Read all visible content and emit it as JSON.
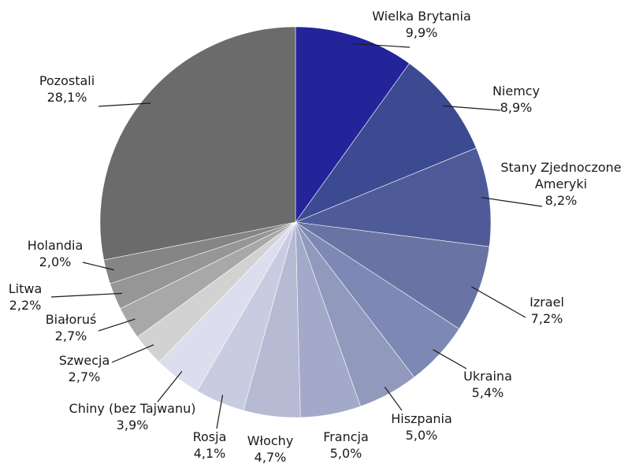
{
  "chart_data": {
    "type": "pie",
    "title": "",
    "slices": [
      {
        "label": [
          "Wielka Brytania"
        ],
        "value": 9.9,
        "display": "9,9%",
        "color": "#23239a"
      },
      {
        "label": [
          "Niemcy"
        ],
        "value": 8.9,
        "display": "8,9%",
        "color": "#3c4a92"
      },
      {
        "label": [
          "Stany Zjednoczone",
          "Ameryki"
        ],
        "value": 8.2,
        "display": "8,2%",
        "color": "#4f5b98"
      },
      {
        "label": [
          "Izrael"
        ],
        "value": 7.2,
        "display": "7,2%",
        "color": "#6a74a4"
      },
      {
        "label": [
          "Ukraina"
        ],
        "value": 5.4,
        "display": "5,4%",
        "color": "#7e88b4"
      },
      {
        "label": [
          "Hiszpania"
        ],
        "value": 5.0,
        "display": "5,0%",
        "color": "#9199bd"
      },
      {
        "label": [
          "Francja"
        ],
        "value": 5.0,
        "display": "5,0%",
        "color": "#a3a9c8"
      },
      {
        "label": [
          "Włochy"
        ],
        "value": 4.7,
        "display": "4,7%",
        "color": "#b6bad3"
      },
      {
        "label": [
          "Rosja"
        ],
        "value": 4.1,
        "display": "4,1%",
        "color": "#c9cbe0"
      },
      {
        "label": [
          "Chiny (bez Tajwanu)"
        ],
        "value": 3.9,
        "display": "3,9%",
        "color": "#dcdded"
      },
      {
        "label": [
          "Szwecja"
        ],
        "value": 2.7,
        "display": "2,7%",
        "color": "#d2d2d2"
      },
      {
        "label": [
          "Białoruś"
        ],
        "value": 2.7,
        "display": "2,7%",
        "color": "#a8a8a8"
      },
      {
        "label": [
          "Litwa"
        ],
        "value": 2.2,
        "display": "2,2%",
        "color": "#969696"
      },
      {
        "label": [
          "Holandia"
        ],
        "value": 2.0,
        "display": "2,0%",
        "color": "#858585"
      },
      {
        "label": [
          "Pozostali"
        ],
        "value": 28.1,
        "display": "28,1%",
        "color": "#6b6b6b"
      }
    ]
  }
}
